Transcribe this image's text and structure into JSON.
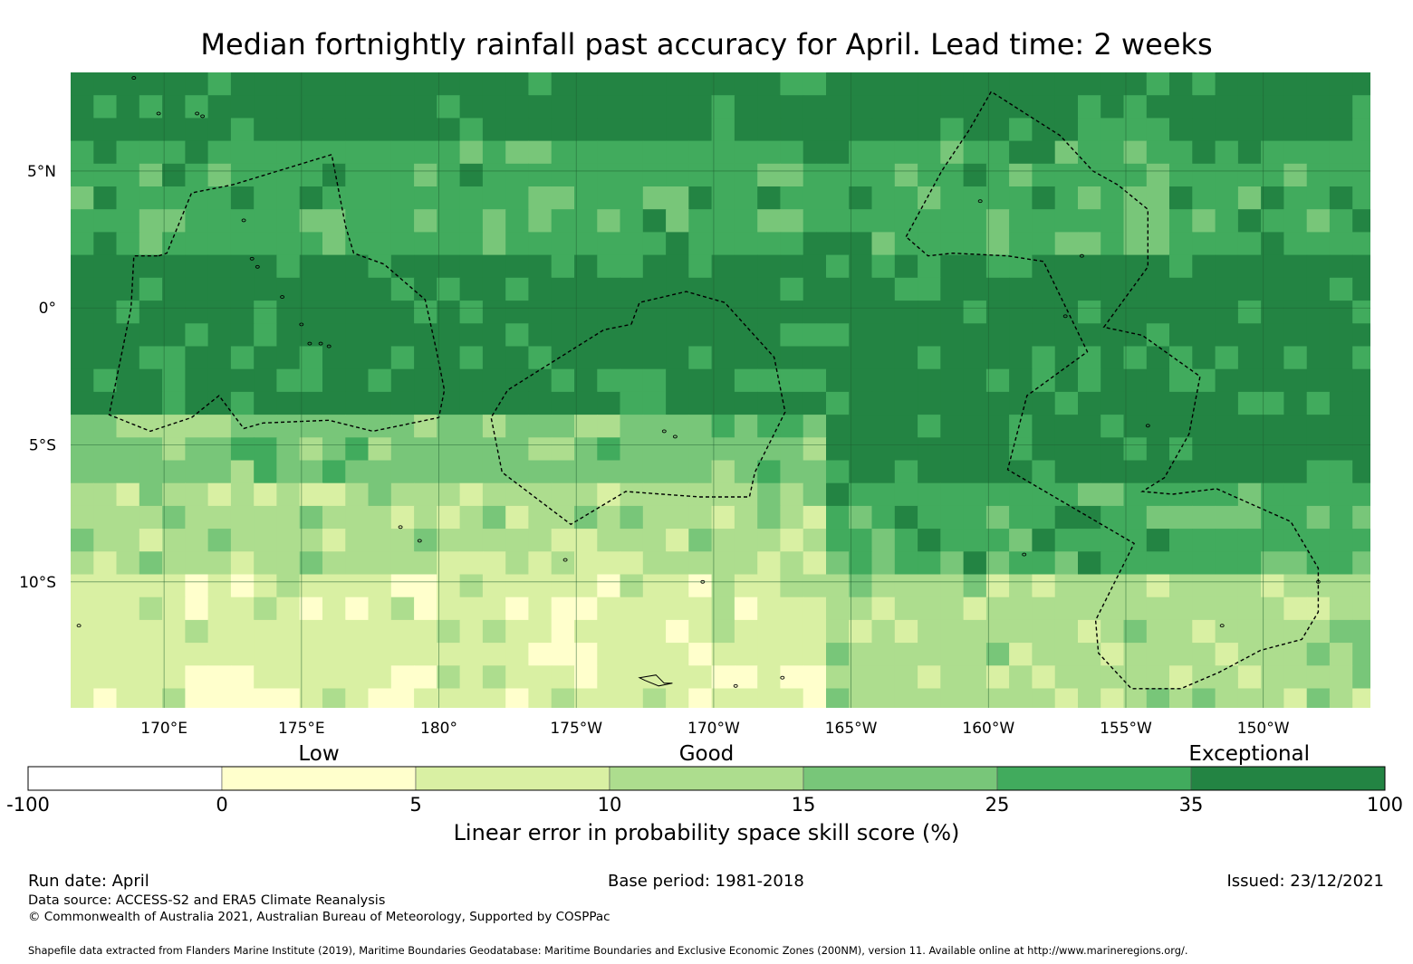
{
  "title": "Median fortnightly rainfall past accuracy for April. Lead time: 2 weeks",
  "map": {
    "lon_range": [
      166.6,
      213.9
    ],
    "lat_range": [
      -14.6,
      8.6
    ],
    "lon_ticks": [
      {
        "value": 170,
        "label": "170°E"
      },
      {
        "value": 175,
        "label": "175°E"
      },
      {
        "value": 180,
        "label": "180°"
      },
      {
        "value": 185,
        "label": "175°W"
      },
      {
        "value": 190,
        "label": "170°W"
      },
      {
        "value": 195,
        "label": "165°W"
      },
      {
        "value": 200,
        "label": "160°W"
      },
      {
        "value": 205,
        "label": "155°W"
      },
      {
        "value": 210,
        "label": "150°W"
      }
    ],
    "lat_ticks": [
      {
        "value": 5,
        "label": "5°N"
      },
      {
        "value": 0,
        "label": "0°"
      },
      {
        "value": -5,
        "label": "5°S"
      },
      {
        "value": -10,
        "label": "10°S"
      }
    ],
    "skill_zones_description_by_latitude": [
      {
        "lat_from": 8.6,
        "lat_to": 6.0,
        "level": 6
      },
      {
        "lat_from": 6.0,
        "lat_to": 2.0,
        "level": 5
      },
      {
        "lat_from": 2.0,
        "lat_to": -4.0,
        "level": 6
      },
      {
        "lat_from": -4.0,
        "lat_to": -6.0,
        "level": 4
      },
      {
        "lat_from": -6.0,
        "lat_to": -10.0,
        "level": 3
      },
      {
        "lat_from": -10.0,
        "lat_to": -14.6,
        "level": 2
      }
    ]
  },
  "colorbar": {
    "ticks": [
      "-100",
      "0",
      "5",
      "10",
      "15",
      "25",
      "35",
      "100"
    ],
    "colors": [
      "#ffffff",
      "#ffffcc",
      "#d9f0a3",
      "#addd8e",
      "#78c679",
      "#41ab5d",
      "#238443"
    ],
    "categories": [
      "Low",
      "Good",
      "Exceptional"
    ],
    "label": "Linear error in probability space skill score (%)"
  },
  "footer": {
    "run_date": "Run date: April",
    "base_period": "Base period: 1981-2018",
    "issued": "Issued: 23/12/2021",
    "data_source": "Data source: ACCESS-S2 and ERA5 Climate Reanalysis",
    "copyright": "© Commonwealth of Australia 2021, Australian Bureau of Meteorology, Supported by COSPPac",
    "shapefile": "Shapefile data extracted from Flanders Marine Institute (2019), Maritime Boundaries Geodatabase: Maritime Boundaries and Exclusive Economic Zones (200NM), version 11. Available online at http://www.marineregions.org/."
  }
}
